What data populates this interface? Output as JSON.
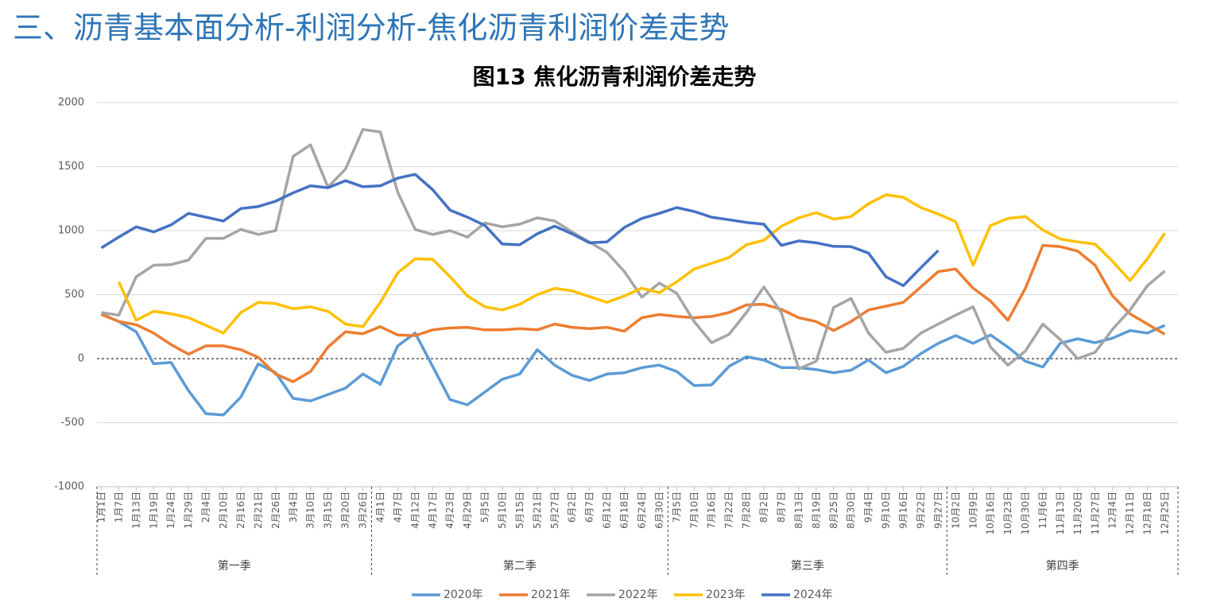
{
  "header": {
    "title": "三、沥青基本面分析-利润分析-焦化沥青利润价差走势"
  },
  "chart_data": {
    "type": "line",
    "title": "图13 焦化沥青利润价差走势",
    "categories": [
      "1月1日",
      "1月7日",
      "1月13日",
      "1月19日",
      "1月24日",
      "1月29日",
      "2月4日",
      "2月10日",
      "2月16日",
      "2月21日",
      "2月26日",
      "3月4日",
      "3月10日",
      "3月15日",
      "3月20日",
      "3月26日",
      "4月1日",
      "4月7日",
      "4月12日",
      "4月17日",
      "4月23日",
      "4月29日",
      "5月5日",
      "5月10日",
      "5月15日",
      "5月21日",
      "5月27日",
      "6月2日",
      "6月7日",
      "6月12日",
      "6月18日",
      "6月24日",
      "6月30日",
      "7月5日",
      "7月10日",
      "7月16日",
      "7月22日",
      "7月28日",
      "8月2日",
      "8月7日",
      "8月13日",
      "8月19日",
      "8月25日",
      "8月30日",
      "9月4日",
      "9月10日",
      "9月16日",
      "9月22日",
      "9月27日",
      "10月2日",
      "10月9日",
      "10月16日",
      "10月23日",
      "10月30日",
      "11月6日",
      "11月13日",
      "11月20日",
      "11月27日",
      "12月4日",
      "12月11日",
      "12月18日",
      "12月25日"
    ],
    "quarters": [
      "第一季",
      "第二季",
      "第三季",
      "第四季"
    ],
    "series": [
      {
        "name": "2020年",
        "color": "#5b9bd5",
        "values": [
          350,
          290,
          210,
          -40,
          -30,
          -250,
          -430,
          -440,
          -300,
          -40,
          -110,
          -310,
          -330,
          -280,
          -230,
          -120,
          -200,
          100,
          200,
          -60,
          -320,
          -360,
          -260,
          -160,
          -120,
          70,
          -50,
          -130,
          -170,
          -120,
          -110,
          -70,
          -50,
          -100,
          -210,
          -205,
          -60,
          15,
          -10,
          -70,
          -70,
          -85,
          -110,
          -90,
          -10,
          -110,
          -60,
          40,
          120,
          180,
          120,
          185,
          90,
          -20,
          -65,
          120,
          155,
          125,
          160,
          220,
          200,
          260
        ]
      },
      {
        "name": "2021年",
        "color": "#ed7d31",
        "values": [
          345,
          290,
          265,
          200,
          110,
          35,
          100,
          100,
          70,
          10,
          -120,
          -180,
          -100,
          90,
          210,
          195,
          250,
          185,
          180,
          225,
          240,
          245,
          225,
          225,
          235,
          225,
          270,
          245,
          235,
          245,
          215,
          320,
          345,
          330,
          320,
          330,
          360,
          420,
          425,
          385,
          320,
          290,
          220,
          290,
          380,
          410,
          440,
          560,
          680,
          700,
          550,
          450,
          300,
          550,
          885,
          875,
          840,
          730,
          490,
          350,
          270,
          190
        ]
      },
      {
        "name": "2022年",
        "color": "#a5a5a5",
        "values": [
          360,
          340,
          640,
          730,
          735,
          770,
          940,
          940,
          1010,
          970,
          1000,
          1580,
          1670,
          1340,
          1480,
          1790,
          1770,
          1300,
          1010,
          970,
          1000,
          950,
          1060,
          1030,
          1050,
          1100,
          1075,
          990,
          910,
          830,
          680,
          480,
          590,
          510,
          290,
          125,
          190,
          360,
          560,
          360,
          -80,
          -20,
          400,
          470,
          200,
          50,
          80,
          200,
          270,
          340,
          405,
          90,
          -50,
          60,
          270,
          150,
          0,
          50,
          230,
          380,
          570,
          685
        ]
      },
      {
        "name": "2023年",
        "color": "#ffc000",
        "values": [
          null,
          600,
          300,
          370,
          350,
          320,
          260,
          200,
          360,
          440,
          430,
          390,
          405,
          370,
          270,
          250,
          440,
          670,
          780,
          776,
          640,
          490,
          405,
          380,
          425,
          500,
          549,
          530,
          485,
          440,
          490,
          550,
          515,
          600,
          700,
          745,
          790,
          890,
          925,
          1035,
          1100,
          1140,
          1090,
          1110,
          1210,
          1280,
          1260,
          1180,
          1130,
          1070,
          730,
          1040,
          1095,
          1110,
          1005,
          935,
          912,
          895,
          760,
          610,
          780,
          980
        ]
      },
      {
        "name": "2024年",
        "color": "#4472c4",
        "values": [
          865,
          950,
          1030,
          990,
          1045,
          1135,
          1105,
          1075,
          1172,
          1188,
          1230,
          1295,
          1350,
          1335,
          1390,
          1343,
          1350,
          1410,
          1440,
          1320,
          1160,
          1105,
          1040,
          895,
          890,
          975,
          1035,
          975,
          905,
          912,
          1025,
          1095,
          1135,
          1180,
          1150,
          1105,
          1085,
          1064,
          1050,
          885,
          920,
          905,
          877,
          875,
          825,
          640,
          570,
          710,
          845,
          null,
          null,
          null,
          null,
          null,
          null,
          null,
          null,
          null,
          null,
          null,
          null,
          null
        ]
      }
    ],
    "ylim": [
      -1000,
      2000
    ],
    "yticks": [
      -1000,
      -500,
      0,
      500,
      1000,
      1500,
      2000
    ],
    "grid": true,
    "legend": "bottom"
  }
}
